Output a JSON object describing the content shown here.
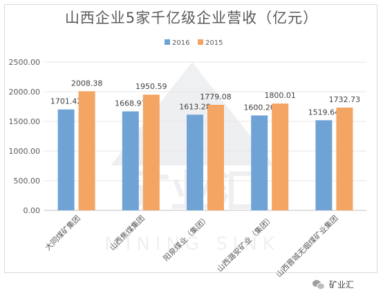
{
  "chart_data": {
    "type": "bar",
    "title": "山西企业5家千亿级企业营收（亿元）",
    "categories": [
      "大同煤矿集团",
      "山西焦煤集团",
      "阳泉煤业（集团）",
      "山西潞安矿业（集团）",
      "山西晋城无烟煤矿业集团"
    ],
    "series": [
      {
        "name": "2016",
        "values": [
          1701.42,
          1668.97,
          1613.28,
          1600.2,
          1519.64
        ],
        "labels": [
          "1701.42",
          "1668.97",
          "1613.28",
          "1600.20",
          "1519.64"
        ]
      },
      {
        "name": "2015",
        "values": [
          2008.38,
          1950.59,
          1779.08,
          1800.01,
          1732.73
        ],
        "labels": [
          "2008.38",
          "1950.59",
          "1779.08",
          "1800.01",
          "1732.73"
        ]
      }
    ],
    "yticks": [
      "0.00",
      "500.00",
      "1000.00",
      "1500.00",
      "2000.00",
      "2500.00"
    ],
    "ylim": [
      0,
      2500
    ],
    "legend_position": "top-center",
    "colors": {
      "2016": "#6fa3d6",
      "2015": "#f4a463"
    }
  },
  "watermark": {
    "logo_text": "矿业汇",
    "logo_subtext": "MINING SINK"
  },
  "footer": {
    "account": "矿业汇"
  }
}
